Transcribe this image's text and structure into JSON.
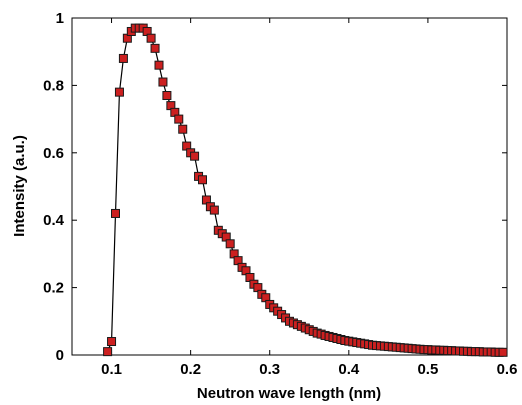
{
  "chart_data": {
    "type": "scatter",
    "title": "",
    "xlabel": "Neutron wave length (nm)",
    "ylabel": "Intensity (a.u.)",
    "xlim": [
      0.05,
      0.6
    ],
    "ylim": [
      0,
      1
    ],
    "xticks": [
      "0.1",
      "0.2",
      "0.3",
      "0.4",
      "0.5",
      "0.6"
    ],
    "yticks": [
      "0",
      "0.2",
      "0.4",
      "0.6",
      "0.8",
      "1"
    ],
    "grid": false,
    "colors": {
      "marker_fill": "#cc2020",
      "marker_edge": "#1a1a1a",
      "line": "#000000"
    },
    "series": [
      {
        "marker": "square",
        "line": true,
        "x": [
          0.095,
          0.1,
          0.105,
          0.11,
          0.115,
          0.12,
          0.125,
          0.13,
          0.135,
          0.14,
          0.145,
          0.15,
          0.155,
          0.16,
          0.165,
          0.17,
          0.175,
          0.18,
          0.185,
          0.19,
          0.195,
          0.2,
          0.205,
          0.21,
          0.215,
          0.22,
          0.225,
          0.23,
          0.235,
          0.24,
          0.245,
          0.25,
          0.255,
          0.26,
          0.265,
          0.27,
          0.275,
          0.28,
          0.285,
          0.29,
          0.295,
          0.3,
          0.305,
          0.31,
          0.315,
          0.32,
          0.325,
          0.33,
          0.335,
          0.34,
          0.345,
          0.35,
          0.355,
          0.36,
          0.365,
          0.37,
          0.375,
          0.38,
          0.385,
          0.39,
          0.395,
          0.4,
          0.405,
          0.41,
          0.415,
          0.42,
          0.425,
          0.43,
          0.435,
          0.44,
          0.445,
          0.45,
          0.455,
          0.46,
          0.465,
          0.47,
          0.475,
          0.48,
          0.485,
          0.49,
          0.495,
          0.5,
          0.505,
          0.51,
          0.515,
          0.52,
          0.525,
          0.53,
          0.535,
          0.54,
          0.545,
          0.55,
          0.555,
          0.56,
          0.565,
          0.57,
          0.575,
          0.58,
          0.585,
          0.59,
          0.595
        ],
        "y": [
          0.01,
          0.04,
          0.42,
          0.78,
          0.88,
          0.94,
          0.96,
          0.97,
          0.97,
          0.97,
          0.96,
          0.94,
          0.91,
          0.86,
          0.81,
          0.77,
          0.74,
          0.72,
          0.7,
          0.67,
          0.62,
          0.6,
          0.59,
          0.53,
          0.52,
          0.46,
          0.44,
          0.43,
          0.37,
          0.36,
          0.35,
          0.33,
          0.3,
          0.28,
          0.26,
          0.25,
          0.23,
          0.21,
          0.2,
          0.18,
          0.17,
          0.15,
          0.14,
          0.13,
          0.12,
          0.11,
          0.1,
          0.095,
          0.09,
          0.085,
          0.08,
          0.075,
          0.07,
          0.065,
          0.062,
          0.058,
          0.055,
          0.052,
          0.049,
          0.046,
          0.043,
          0.041,
          0.039,
          0.037,
          0.035,
          0.033,
          0.031,
          0.029,
          0.028,
          0.027,
          0.026,
          0.025,
          0.024,
          0.023,
          0.022,
          0.021,
          0.02,
          0.019,
          0.018,
          0.017,
          0.016,
          0.016,
          0.015,
          0.015,
          0.014,
          0.014,
          0.013,
          0.013,
          0.012,
          0.012,
          0.011,
          0.011,
          0.01,
          0.01,
          0.01,
          0.009,
          0.009,
          0.009,
          0.008,
          0.008,
          0.008
        ]
      }
    ]
  }
}
